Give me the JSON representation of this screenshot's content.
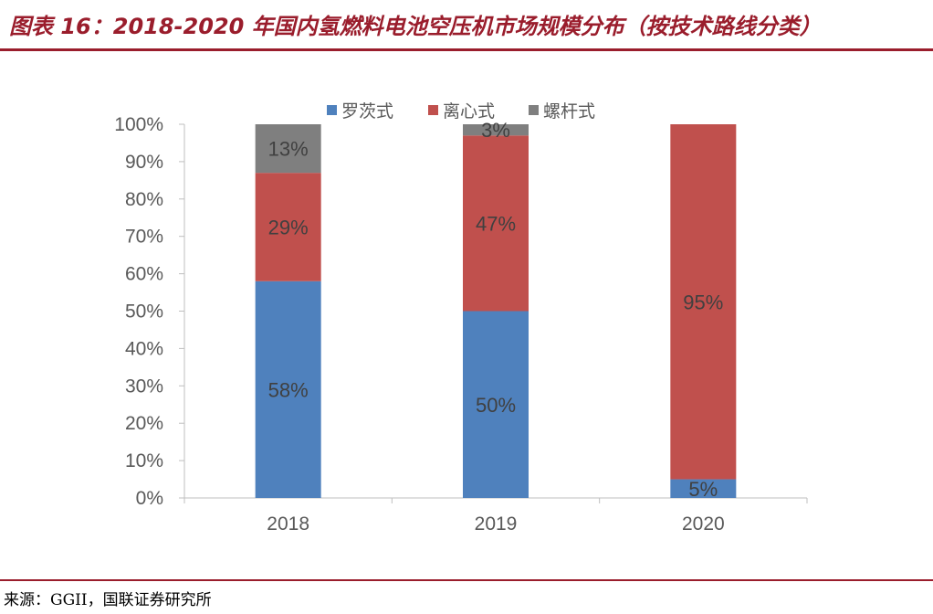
{
  "header": {
    "title": "图表 16：2018-2020 年国内氢燃料电池空压机市场规模分布（按技术路线分类）"
  },
  "footer": {
    "source": "来源：GGII，国联证券研究所"
  },
  "colors": {
    "accent": "#9a1d2c",
    "series": [
      "#4f81bd",
      "#c0504d",
      "#7f7f7f"
    ]
  },
  "chart_data": {
    "type": "bar",
    "stacked": true,
    "categories": [
      "2018",
      "2019",
      "2020"
    ],
    "series": [
      {
        "name": "罗茨式",
        "values": [
          58,
          50,
          5
        ],
        "labels": [
          "58%",
          "50%",
          "5%"
        ]
      },
      {
        "name": "离心式",
        "values": [
          29,
          47,
          95
        ],
        "labels": [
          "29%",
          "47%",
          "95%"
        ]
      },
      {
        "name": "螺杆式",
        "values": [
          13,
          3,
          0
        ],
        "labels": [
          "13%",
          "3%",
          ""
        ]
      }
    ],
    "ylim": [
      0,
      100
    ],
    "yticks": [
      "0%",
      "10%",
      "20%",
      "30%",
      "40%",
      "50%",
      "60%",
      "70%",
      "80%",
      "90%",
      "100%"
    ],
    "grid": false,
    "legend": "top"
  }
}
